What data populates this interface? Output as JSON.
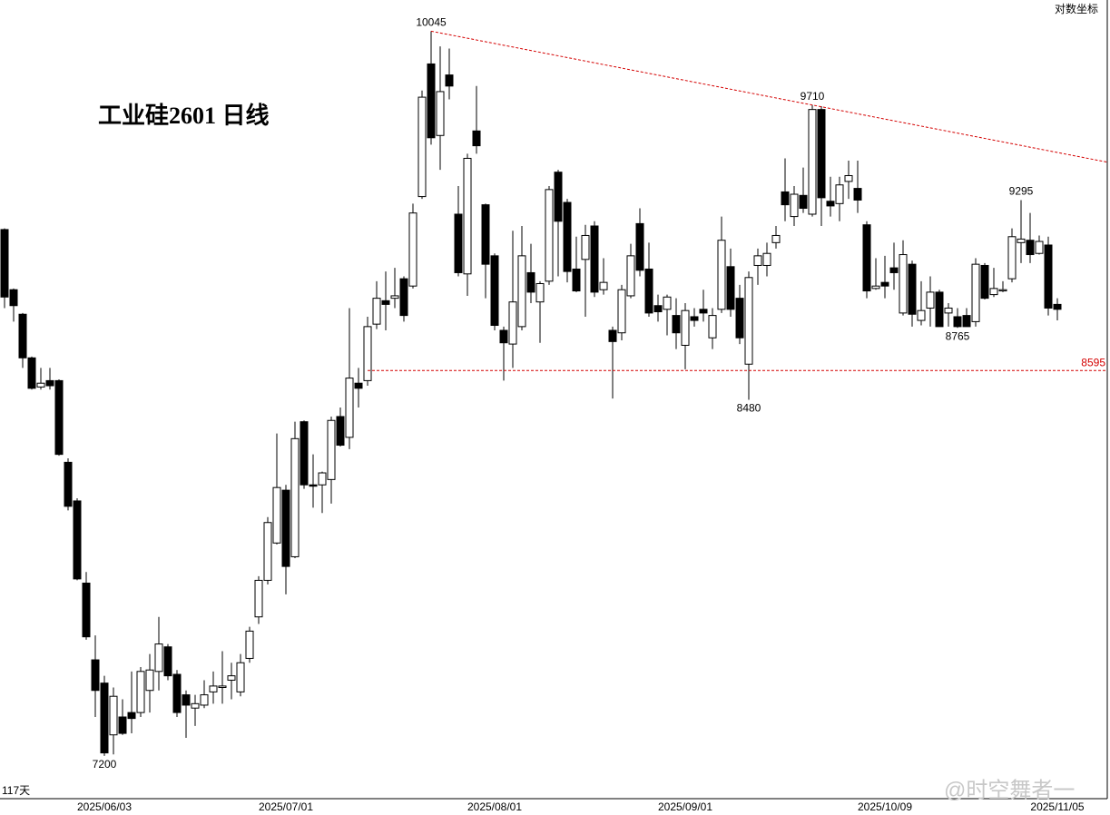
{
  "chart_data": {
    "type": "candlestick",
    "title": "工业硅2601  日线",
    "scale_label": "对数坐标",
    "count_label": "117天",
    "watermark": "@时空舞者一",
    "log_scale": true,
    "ylim": [
      7060,
      10190
    ],
    "up_color": "#ffffff",
    "down_color": "#000000",
    "line_color": "#d40000",
    "reference_line": 8595,
    "high_labels": [
      10045,
      9710,
      9295
    ],
    "low_labels": [
      8480,
      8765,
      7200
    ],
    "categories": [
      null,
      null,
      null,
      null,
      null,
      null,
      null,
      null,
      null,
      null,
      null,
      "2025/06/03",
      null,
      null,
      null,
      null,
      null,
      null,
      null,
      null,
      null,
      null,
      null,
      null,
      null,
      null,
      null,
      null,
      null,
      null,
      null,
      "2025/07/01",
      null,
      null,
      null,
      null,
      null,
      null,
      null,
      null,
      null,
      null,
      null,
      null,
      null,
      null,
      null,
      null,
      null,
      null,
      null,
      null,
      null,
      null,
      "2025/08/01",
      null,
      null,
      null,
      null,
      null,
      null,
      null,
      null,
      null,
      null,
      null,
      null,
      null,
      null,
      null,
      null,
      null,
      null,
      null,
      null,
      "2025/09/01",
      null,
      null,
      null,
      null,
      null,
      null,
      null,
      null,
      null,
      null,
      null,
      null,
      null,
      null,
      null,
      null,
      null,
      null,
      null,
      null,
      null,
      "2025/10/09",
      null,
      null,
      null,
      null,
      null,
      null,
      null,
      null,
      null,
      null,
      null,
      null,
      null,
      null,
      null,
      null,
      null,
      null,
      "2025/11/05"
    ],
    "open": [
      9170,
      8920,
      8820,
      8645,
      8530,
      8555,
      8555,
      8240,
      8095,
      7795,
      7525,
      7445,
      7270,
      7330,
      7345,
      7345,
      7420,
      7485,
      7570,
      7475,
      7405,
      7360,
      7370,
      7415,
      7430,
      7455,
      7415,
      7530,
      7675,
      7805,
      7940,
      8135,
      7890,
      8395,
      8155,
      8155,
      8175,
      8415,
      8335,
      8545,
      8555,
      8780,
      8875,
      8885,
      8965,
      8935,
      9310,
      9895,
      9575,
      9845,
      9235,
      8985,
      9595,
      9275,
      9060,
      8755,
      8700,
      8770,
      8990,
      8870,
      8955,
      9415,
      9285,
      9005,
      9045,
      9185,
      8920,
      8755,
      8745,
      8895,
      9195,
      9005,
      8855,
      8840,
      8815,
      8695,
      8810,
      8840,
      8725,
      8840,
      9015,
      8885,
      8620,
      9020,
      9020,
      9115,
      9330,
      9225,
      9315,
      9235,
      9690,
      9290,
      9280,
      9375,
      9345,
      9190,
      8925,
      8950,
      9010,
      8825,
      9025,
      8795,
      8845,
      8910,
      8825,
      8810,
      8815,
      8790,
      9020,
      8900,
      8915,
      8965,
      9115,
      9125,
      9070,
      9105,
      8860
    ],
    "high": [
      9175,
      8925,
      8825,
      8650,
      8605,
      8605,
      8560,
      8255,
      8105,
      7835,
      7610,
      7470,
      7430,
      7390,
      7485,
      7500,
      7545,
      7675,
      7580,
      7490,
      7420,
      7405,
      7455,
      7485,
      7555,
      7515,
      7545,
      7640,
      7820,
      8035,
      8350,
      8155,
      8395,
      8400,
      8270,
      8205,
      8415,
      8450,
      8845,
      8605,
      8810,
      8955,
      8995,
      9010,
      8975,
      9280,
      9775,
      10045,
      9975,
      9965,
      9355,
      9495,
      9795,
      9280,
      9070,
      8770,
      9165,
      9185,
      9110,
      8955,
      9355,
      9425,
      9300,
      9140,
      9190,
      9205,
      9050,
      8770,
      8940,
      9110,
      9260,
      9115,
      8900,
      8900,
      8885,
      8865,
      8845,
      8920,
      8845,
      9225,
      9090,
      8940,
      8995,
      9090,
      9115,
      9185,
      9475,
      9355,
      9435,
      9710,
      9705,
      9395,
      9395,
      9465,
      9465,
      9205,
      9050,
      9060,
      9115,
      9125,
      9040,
      8955,
      8975,
      8920,
      8865,
      8845,
      8845,
      9050,
      9030,
      9010,
      8955,
      9175,
      9295,
      9240,
      9145,
      9140,
      8885
    ],
    "low": [
      8845,
      8790,
      8605,
      8520,
      8520,
      8520,
      8265,
      8060,
      7805,
      7595,
      7330,
      7200,
      7205,
      7270,
      7275,
      7330,
      7345,
      7420,
      7455,
      7330,
      7260,
      7300,
      7360,
      7375,
      7375,
      7390,
      7400,
      7515,
      7650,
      7790,
      7935,
      7755,
      7885,
      8140,
      8070,
      8050,
      8085,
      8300,
      8290,
      8450,
      8535,
      8760,
      8755,
      8845,
      8790,
      8925,
      9300,
      9535,
      9425,
      9735,
      8975,
      8895,
      9495,
      8885,
      8755,
      8555,
      8605,
      8755,
      8865,
      8705,
      8940,
      8975,
      8950,
      8910,
      8810,
      8890,
      8900,
      8485,
      8715,
      8885,
      8975,
      8810,
      8790,
      8735,
      8680,
      8600,
      8770,
      8790,
      8680,
      8825,
      8810,
      8700,
      8480,
      8940,
      8975,
      9090,
      9205,
      9185,
      9240,
      9225,
      9185,
      9225,
      9205,
      9300,
      9240,
      8885,
      8920,
      8885,
      8920,
      8815,
      8770,
      8775,
      8770,
      8770,
      8770,
      8765,
      8770,
      8770,
      8880,
      8890,
      8910,
      8950,
      9030,
      9030,
      9065,
      8815,
      8795
    ],
    "close": [
      8890,
      8855,
      8645,
      8525,
      8545,
      8535,
      8270,
      8075,
      7810,
      7605,
      7420,
      7210,
      7400,
      7275,
      7325,
      7485,
      7490,
      7580,
      7470,
      7345,
      7370,
      7375,
      7405,
      7435,
      7435,
      7470,
      7515,
      7625,
      7805,
      8015,
      8145,
      7855,
      8330,
      8155,
      8150,
      8200,
      8400,
      8305,
      8565,
      8525,
      8770,
      8885,
      8860,
      8895,
      8815,
      9240,
      9745,
      9565,
      9770,
      9795,
      8990,
      9475,
      9530,
      9025,
      8775,
      8705,
      8870,
      9060,
      8910,
      8945,
      9340,
      9205,
      8995,
      8915,
      9145,
      8910,
      8950,
      8710,
      8920,
      9060,
      9000,
      8825,
      8830,
      8890,
      8745,
      8835,
      8795,
      8825,
      8815,
      9125,
      8840,
      8725,
      8970,
      9060,
      9070,
      9145,
      9275,
      9320,
      9260,
      9690,
      9305,
      9270,
      9360,
      9400,
      9295,
      8915,
      8935,
      8935,
      8990,
      9065,
      8820,
      8835,
      8910,
      8770,
      8845,
      8770,
      8770,
      9025,
      8885,
      8925,
      8920,
      9140,
      9130,
      9065,
      9120,
      8845,
      8840
    ]
  }
}
